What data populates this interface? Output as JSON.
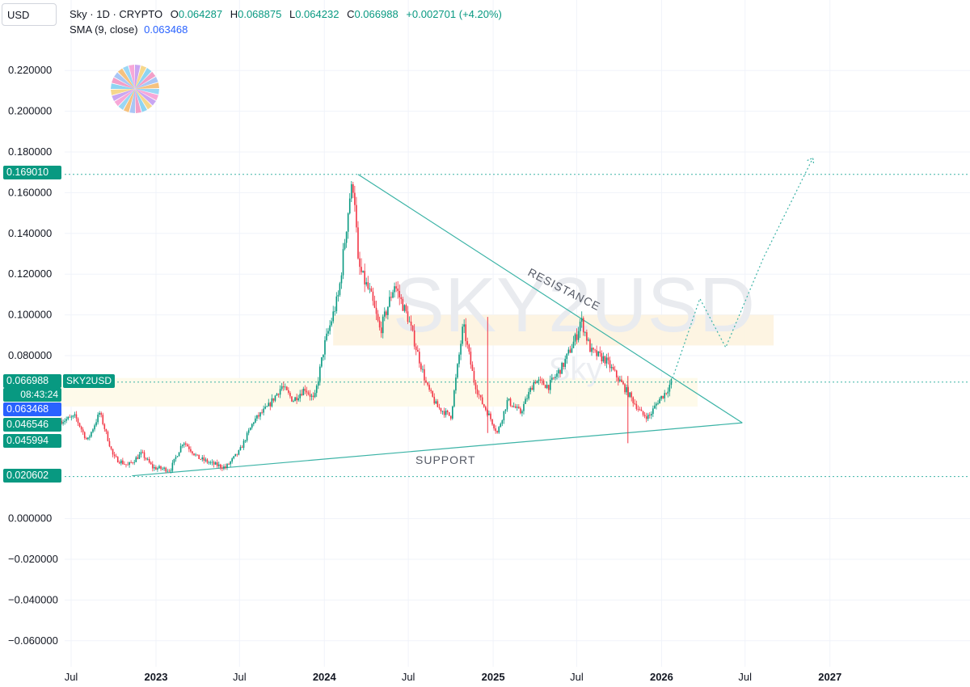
{
  "header": {
    "currency": "USD",
    "symbol_line": "Sky · 1D · CRYPTO",
    "ohlc": {
      "o_label": "O",
      "o": "0.064287",
      "h_label": "H",
      "h": "0.068875",
      "l_label": "L",
      "l": "0.064232",
      "c_label": "C",
      "c": "0.066988",
      "change": "+0.002701 (+4.20%)"
    },
    "sma_label": "SMA (9, close)",
    "sma_value": "0.063468"
  },
  "watermark": {
    "symbol": "SKY2USD",
    "name": "Sky"
  },
  "colors": {
    "up": "#089981",
    "down": "#f23645",
    "sma": "#2962ff",
    "trendline": "#3bb3a6",
    "zone": "#fdf3df",
    "zone_light": "#fefae8",
    "grid": "#f0f3fa"
  },
  "price_tags": {
    "high": "0.169010",
    "last": "0.066988",
    "symbol": "SKY2USD",
    "countdown": "08:43:24",
    "sma": "0.063468",
    "level_a": "0.046546",
    "level_b": "0.045994",
    "low": "0.020602"
  },
  "annotations": {
    "resistance": "RESISTANCE",
    "support": "SUPPORT"
  },
  "chart_data": {
    "type": "line",
    "title": "Sky · 1D · CRYPTO",
    "ylabel": "USD",
    "ylim": [
      -0.07,
      0.24
    ],
    "y_ticks": [
      "0.220000",
      "0.200000",
      "0.180000",
      "0.160000",
      "0.140000",
      "0.120000",
      "0.100000",
      "0.080000",
      "0.000000",
      "−0.020000",
      "−0.040000",
      "−0.060000"
    ],
    "y_tick_values": [
      0.22,
      0.2,
      0.18,
      0.16,
      0.14,
      0.12,
      0.1,
      0.08,
      0.0,
      -0.02,
      -0.04,
      -0.06
    ],
    "x_ticks": [
      "Jul",
      "2023",
      "Jul",
      "2024",
      "Jul",
      "2025",
      "Jul",
      "2026",
      "Jul",
      "2027"
    ],
    "x_tick_dates": [
      "2022-07-01",
      "2023-01-01",
      "2023-07-01",
      "2024-01-01",
      "2024-07-01",
      "2025-01-01",
      "2025-07-01",
      "2026-01-01",
      "2026-07-01",
      "2027-01-01"
    ],
    "series": [
      {
        "name": "SKY2USD",
        "x": [
          "2022-06-10",
          "2022-07-10",
          "2022-08-05",
          "2022-09-01",
          "2022-10-01",
          "2022-11-01",
          "2022-12-01",
          "2022-12-25",
          "2023-02-01",
          "2023-03-01",
          "2023-04-01",
          "2023-05-01",
          "2023-06-01",
          "2023-07-01",
          "2023-08-01",
          "2023-09-01",
          "2023-10-01",
          "2023-10-25",
          "2023-11-20",
          "2023-12-10",
          "2024-01-01",
          "2024-02-01",
          "2024-02-25",
          "2024-03-05",
          "2024-03-14",
          "2024-03-25",
          "2024-04-10",
          "2024-05-01",
          "2024-06-01",
          "2024-07-01",
          "2024-07-20",
          "2024-08-10",
          "2024-09-01",
          "2024-10-01",
          "2024-10-28",
          "2024-11-20",
          "2024-12-05",
          "2024-12-20",
          "2025-01-10",
          "2025-02-01",
          "2025-03-01",
          "2025-04-01",
          "2025-05-01",
          "2025-06-01",
          "2025-07-01",
          "2025-07-10",
          "2025-08-01",
          "2025-09-01",
          "2025-10-01",
          "2025-10-25",
          "2025-11-20",
          "2025-12-05",
          "2025-12-25",
          "2026-01-10",
          "2026-01-22"
        ],
        "values": [
          0.048,
          0.05,
          0.038,
          0.052,
          0.03,
          0.026,
          0.032,
          0.025,
          0.024,
          0.038,
          0.03,
          0.027,
          0.025,
          0.033,
          0.048,
          0.055,
          0.065,
          0.058,
          0.064,
          0.058,
          0.085,
          0.11,
          0.158,
          0.165,
          0.125,
          0.118,
          0.11,
          0.092,
          0.115,
          0.098,
          0.082,
          0.065,
          0.055,
          0.05,
          0.095,
          0.068,
          0.058,
          0.052,
          0.042,
          0.058,
          0.052,
          0.068,
          0.065,
          0.075,
          0.09,
          0.098,
          0.082,
          0.078,
          0.068,
          0.06,
          0.051,
          0.05,
          0.058,
          0.062,
          0.067
        ]
      },
      {
        "name": "SMA (9, close)",
        "x": [
          "2026-01-22"
        ],
        "values": [
          0.063468
        ]
      }
    ],
    "levels": [
      0.16901,
      0.066988,
      0.020602
    ],
    "zones": [
      {
        "from": 0.085,
        "to": 0.1,
        "x0": "2024-01-20",
        "x1": "2026-09-01"
      },
      {
        "from": 0.055,
        "to": 0.069,
        "x0": "2022-06-01",
        "x1": "2026-03-20"
      }
    ],
    "trendlines": [
      {
        "name": "RESISTANCE",
        "x0": "2024-03-14",
        "y0": 0.169,
        "x1": "2026-06-25",
        "y1": 0.047
      },
      {
        "name": "SUPPORT",
        "x0": "2022-11-10",
        "y0": 0.021,
        "x1": "2026-06-25",
        "y1": 0.047
      }
    ],
    "projection": {
      "x": [
        "2026-01-22",
        "2026-03-25",
        "2026-05-20",
        "2026-08-10",
        "2026-11-25"
      ],
      "values": [
        0.067,
        0.108,
        0.084,
        0.128,
        0.177
      ]
    },
    "grid": true,
    "legend": "top-left"
  }
}
